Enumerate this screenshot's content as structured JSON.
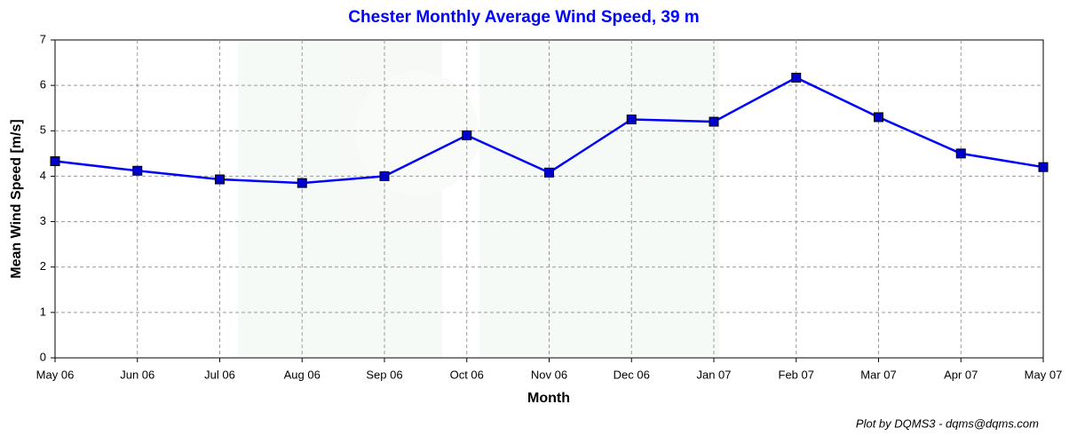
{
  "chart_data": {
    "type": "line",
    "title": "Chester Monthly Average Wind Speed, 39 m",
    "x_label": "Month",
    "y_label": "Mean Wind Speed [m/s]",
    "footer": "Plot by DQMS3 - dqms@dqms.com",
    "categories": [
      "May 06",
      "Jun 06",
      "Jul 06",
      "Aug 06",
      "Sep 06",
      "Oct 06",
      "Nov 06",
      "Dec 06",
      "Jan 07",
      "Feb 07",
      "Mar 07",
      "Apr 07",
      "May 07"
    ],
    "values": [
      4.33,
      4.12,
      3.93,
      3.85,
      4.0,
      4.9,
      4.08,
      5.25,
      5.2,
      6.17,
      5.3,
      4.5,
      4.2
    ],
    "color": "#0000ff",
    "marker_color": "#0000cc",
    "ylim": [
      0,
      7
    ],
    "yticks": [
      0,
      1,
      2,
      3,
      4,
      5,
      6,
      7
    ],
    "grid": true
  }
}
